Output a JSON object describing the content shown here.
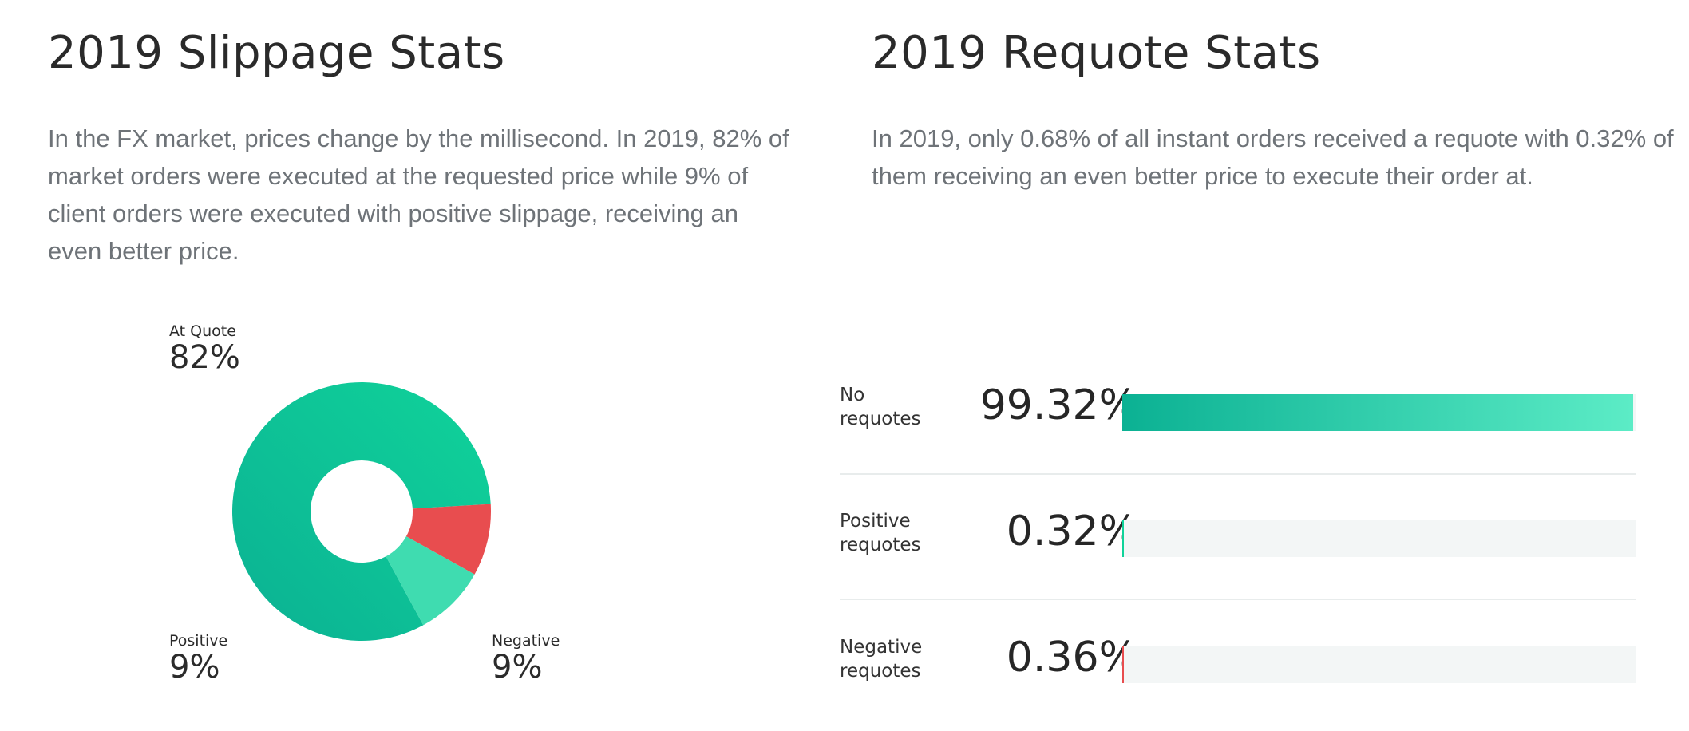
{
  "left": {
    "title": "2019 Slippage Stats",
    "description": "In the FX market, prices change by the millisecond. In 2019, 82% of market orders were executed at the requested price while 9% of client orders were executed with positive slippage, receiving an even better price."
  },
  "right": {
    "title": "2019 Requote Stats",
    "description": "In 2019, only 0.68% of all instant orders received a requote with 0.32% of them receiving an even better price to execute their order at."
  },
  "donut_labels": {
    "at_quote": {
      "name": "At Quote",
      "pct": "82%"
    },
    "positive": {
      "name": "Positive",
      "pct": "9%"
    },
    "negative": {
      "name": "Negative",
      "pct": "9%"
    }
  },
  "bar_labels": {
    "no": {
      "line1": "No",
      "line2": "requotes",
      "value": "99.32%"
    },
    "positive": {
      "line1": "Positive",
      "line2": "requotes",
      "value": "0.32%"
    },
    "negative": {
      "line1": "Negative",
      "line2": "requotes",
      "value": "0.36%"
    }
  },
  "colors": {
    "teal_dark": "#0bb193",
    "teal": "#10d39a",
    "teal_light": "#5cecc6",
    "mint": "#3fdcb0",
    "red": "#e84d4f",
    "track": "#f3f6f6"
  },
  "chart_data": [
    {
      "type": "pie",
      "title": "2019 Slippage Stats",
      "donut": true,
      "categories": [
        "At Quote",
        "Negative",
        "Positive"
      ],
      "values": [
        82,
        9,
        9
      ],
      "unit": "%"
    },
    {
      "type": "bar",
      "orientation": "horizontal",
      "title": "2019 Requote Stats",
      "categories": [
        "No requotes",
        "Positive requotes",
        "Negative requotes"
      ],
      "values": [
        99.32,
        0.32,
        0.36
      ],
      "unit": "%",
      "xlim": [
        0,
        100
      ]
    }
  ]
}
